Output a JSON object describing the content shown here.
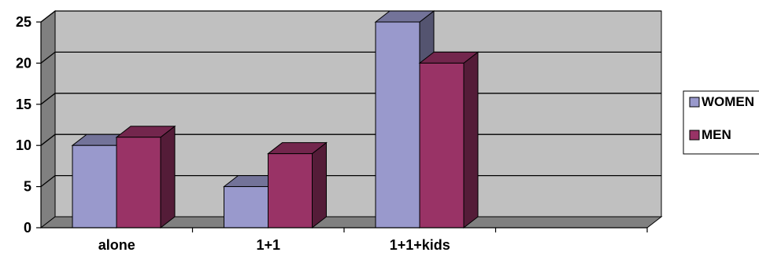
{
  "chart_data": {
    "type": "bar",
    "categories": [
      "alone",
      "1+1",
      "1+1+kids",
      ""
    ],
    "series": [
      {
        "name": "WOMEN",
        "values": [
          10,
          5,
          25,
          null
        ]
      },
      {
        "name": "MEN",
        "values": [
          11,
          9,
          20,
          null
        ]
      }
    ],
    "ylim": [
      0,
      25
    ],
    "yticks": [
      0,
      5,
      10,
      15,
      20,
      25
    ],
    "grid": true,
    "legend_position": "right",
    "style": "3d-clustered-bar"
  },
  "colors": {
    "WOMEN": "#9999cc",
    "MEN": "#993366",
    "wall": "#c0c0c0",
    "floor": "#808080",
    "side_wall": "#808080"
  }
}
